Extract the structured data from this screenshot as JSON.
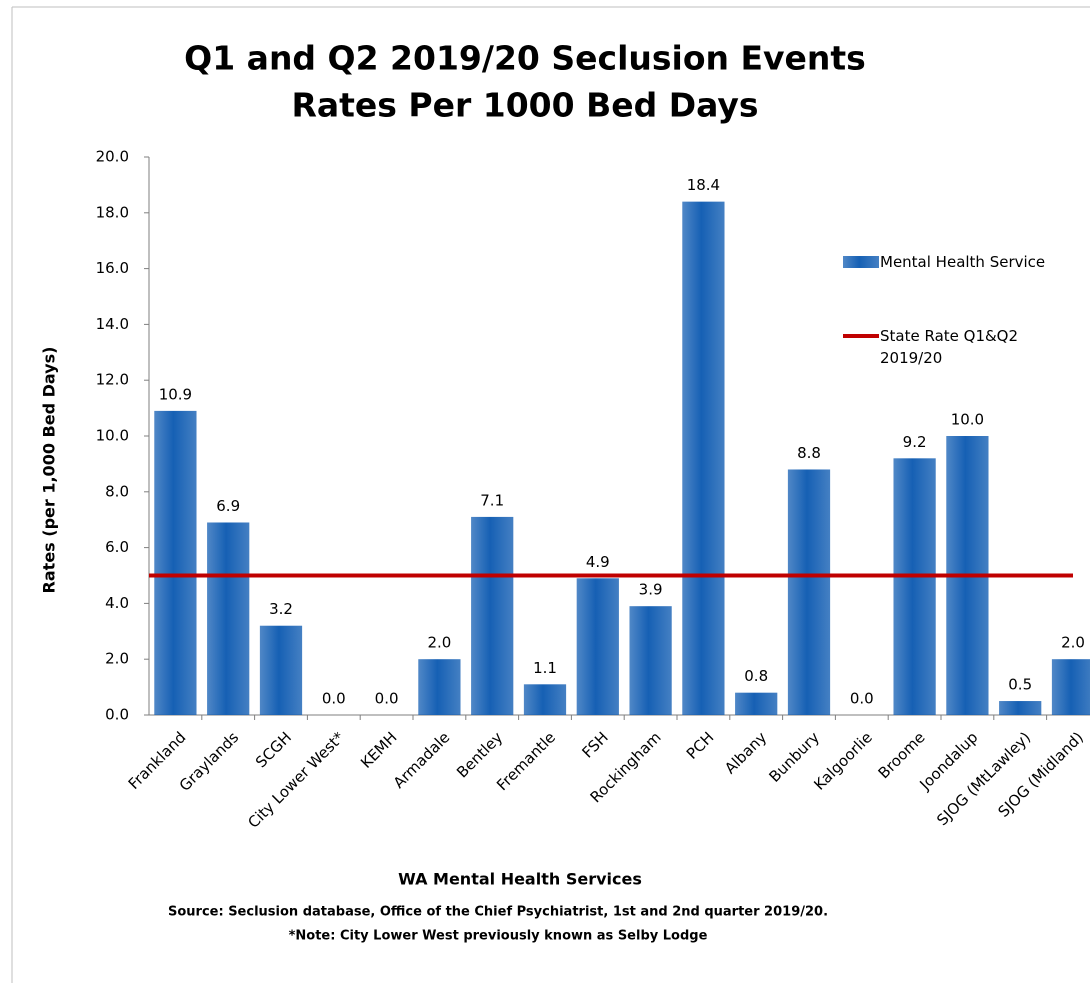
{
  "chart_data": {
    "type": "bar",
    "title": "Q1 and Q2 2019/20 Seclusion Events",
    "subtitle": "Rates Per 1000 Bed Days",
    "x_label": "WA Mental Health Services",
    "y_label": "Rates (per 1,000 Bed Days)",
    "notes": [
      "Source: Seclusion database, Office of the Chief Psychiatrist, 1st and 2nd quarter 2019/20.",
      "*Note: City Lower West previously known as Selby Lodge"
    ],
    "categories": [
      "Frankland",
      "Graylands",
      "SCGH",
      "City Lower West*",
      "KEMH",
      "Armadale",
      "Bentley",
      "Fremantle",
      "FSH",
      "Rockingham",
      "PCH",
      "Albany",
      "Bunbury",
      "Kalgoorlie",
      "Broome",
      "Joondalup",
      "SJOG (MtLawley)",
      "SJOG (Midland)"
    ],
    "series": [
      {
        "name": "Mental Health Service",
        "color": "#1660b4",
        "values": [
          10.9,
          6.9,
          3.2,
          0.0,
          0.0,
          2.0,
          7.1,
          1.1,
          4.9,
          3.9,
          18.4,
          0.8,
          8.8,
          0.0,
          9.2,
          10.0,
          0.5,
          2.0
        ],
        "value_labels": [
          "10.9",
          "6.9",
          "3.2",
          "0.0",
          "0.0",
          "2.0",
          "7.1",
          "1.1",
          "4.9",
          "3.9",
          "18.4",
          "0.8",
          "8.8",
          "0.0",
          "9.2",
          "10.0",
          "0.5",
          "2.0"
        ]
      }
    ],
    "reference_line": {
      "name": "State Rate Q1&Q2 2019/20",
      "value": 5.0,
      "color": "#c00000"
    },
    "ylim": [
      0,
      20
    ],
    "yticks": [
      {
        "value": 0,
        "label": "0.0"
      },
      {
        "value": 2,
        "label": "2.0"
      },
      {
        "value": 4,
        "label": "4.0"
      },
      {
        "value": 6,
        "label": "6.0"
      },
      {
        "value": 8,
        "label": "8.0"
      },
      {
        "value": 10,
        "label": "10.0"
      },
      {
        "value": 12,
        "label": "12.0"
      },
      {
        "value": 14,
        "label": "14.0"
      },
      {
        "value": 16,
        "label": "16.0"
      },
      {
        "value": 18,
        "label": "18.0"
      },
      {
        "value": 20,
        "label": "20.0"
      }
    ],
    "legend": "right"
  }
}
